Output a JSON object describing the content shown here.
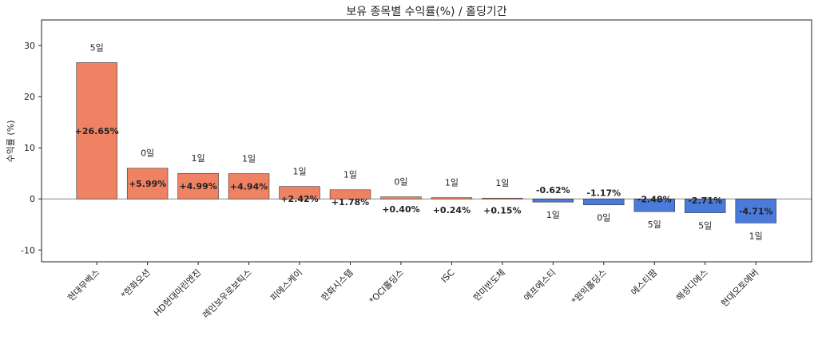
{
  "chart_data": {
    "type": "bar",
    "title": "보유 종목별 수익률(%) / 홀딩기간",
    "xlabel": "",
    "ylabel": "수익률 (%)",
    "ylim": [
      -12.3,
      35
    ],
    "yticks": [
      -10,
      0,
      10,
      20,
      30
    ],
    "categories": [
      "현대무벡스",
      "*한화오션",
      "HD현대마린엔진",
      "레인보우로보틱스",
      "피에스케이",
      "한화시스템",
      "*OCI홀딩스",
      "ISC",
      "한미반도체",
      "에프에스티",
      "*원익홀딩스",
      "에스티팜",
      "해성디에스",
      "현대오토에버"
    ],
    "values": [
      26.65,
      5.99,
      4.99,
      4.94,
      2.42,
      1.78,
      0.4,
      0.24,
      0.15,
      -0.62,
      -1.17,
      -2.48,
      -2.71,
      -4.71
    ],
    "value_labels": [
      "+26.65%",
      "+5.99%",
      "+4.99%",
      "+4.94%",
      "+2.42%",
      "+1.78%",
      "+0.40%",
      "+0.24%",
      "+0.15%",
      "-0.62%",
      "-1.17%",
      "-2.48%",
      "-2.71%",
      "-4.71%"
    ],
    "holding_labels": [
      "5일",
      "0일",
      "1일",
      "1일",
      "1일",
      "1일",
      "0일",
      "1일",
      "1일",
      "1일",
      "0일",
      "5일",
      "5일",
      "1일"
    ],
    "colors": {
      "positive": "#f08264",
      "negative": "#4a7bdb",
      "zero_line": "#888888"
    }
  }
}
